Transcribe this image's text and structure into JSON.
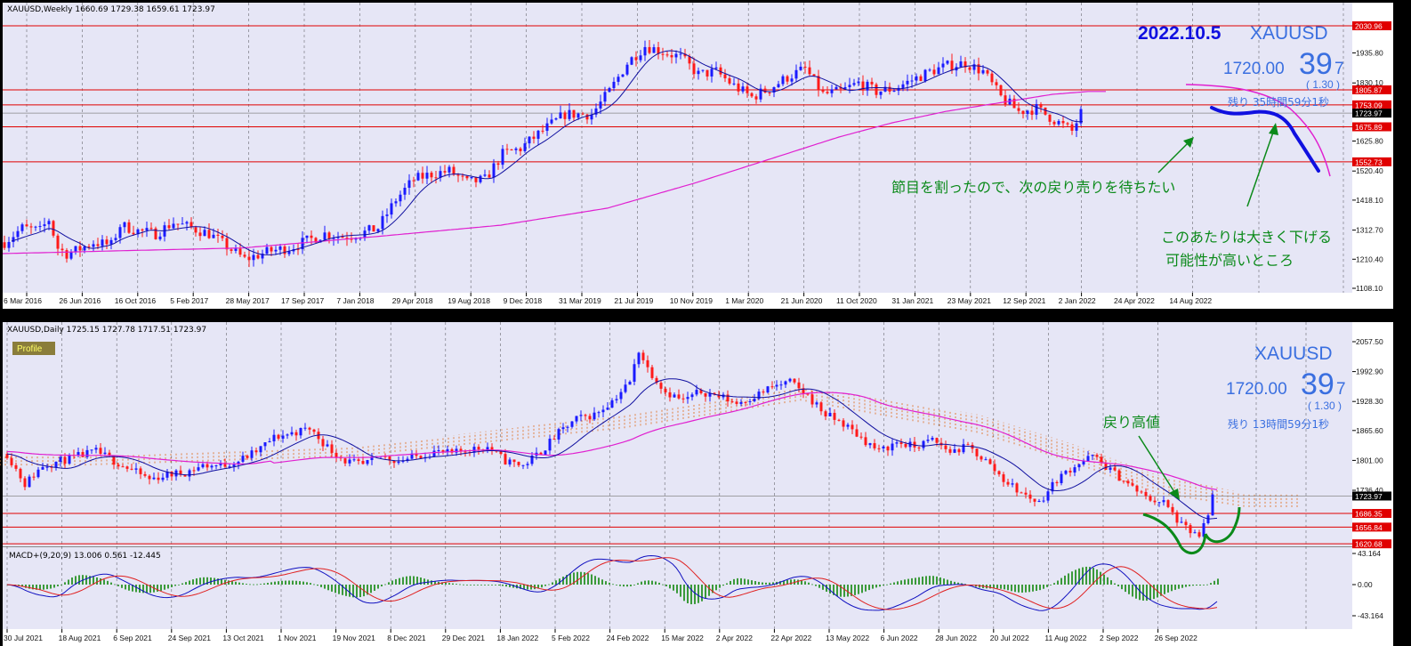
{
  "weekly_panel": {
    "header": "XAUUSD,Weekly  1660.69 1729.38 1659.61 1723.97",
    "date_label": "2022.10.5",
    "symbol": "XAUUSD",
    "price_main": "1720.00",
    "price_big": "39",
    "price_small": "7",
    "change": "( 1.30 )",
    "remaining": "残り 35時間59分1秒",
    "annotation_1": "節目を割ったので、次の戻り売りを待ちたい",
    "annotation_2_line1": "このあたりは大きく下げる",
    "annotation_2_line2": "可能性が高いところ",
    "price_ticks": [
      "1935.80",
      "1830.10",
      "1625.80",
      "1520.40",
      "1418.10",
      "1312.70",
      "1210.40",
      "1108.10"
    ],
    "level_tags": [
      "2030.96",
      "1805.87",
      "1753.09",
      "1723.97",
      "1675.89",
      "1552.73"
    ],
    "date_ticks": [
      "6 Mar 2016",
      "26 Jun 2016",
      "16 Oct 2016",
      "5 Feb 2017",
      "28 May 2017",
      "17 Sep 2017",
      "7 Jan 2018",
      "29 Apr 2018",
      "19 Aug 2018",
      "9 Dec 2018",
      "31 Mar 2019",
      "21 Jul 2019",
      "10 Nov 2019",
      "1 Mar 2020",
      "21 Jun 2020",
      "11 Oct 2020",
      "31 Jan 2021",
      "23 May 2021",
      "12 Sep 2021",
      "2 Jan 2022",
      "24 Apr 2022",
      "14 Aug 2022"
    ]
  },
  "daily_panel": {
    "header": "XAUUSD,Daily  1725.15 1727.78 1717.51 1723.97",
    "profile_label": "Profile",
    "symbol": "XAUUSD",
    "price_main": "1720.00",
    "price_big": "39",
    "price_small": "7",
    "change": "( 1.30 )",
    "remaining": "残り 13時間59分1秒",
    "annotation": "戻り高値",
    "price_ticks": [
      "2057.50",
      "1992.90",
      "1928.30",
      "1865.60",
      "1801.00",
      "1736.40"
    ],
    "level_tags": [
      "1723.97",
      "1686.35",
      "1656.84",
      "1620.68"
    ],
    "date_ticks": [
      "30 Jul 2021",
      "18 Aug 2021",
      "6 Sep 2021",
      "24 Sep 2021",
      "13 Oct 2021",
      "1 Nov 2021",
      "19 Nov 2021",
      "8 Dec 2021",
      "29 Dec 2021",
      "18 Jan 2022",
      "5 Feb 2022",
      "24 Feb 2022",
      "15 Mar 2022",
      "2 Apr 2022",
      "22 Apr 2022",
      "13 May 2022",
      "6 Jun 2022",
      "28 Jun 2022",
      "20 Jul 2022",
      "11 Aug 2022",
      "2 Sep 2022",
      "26 Sep 2022"
    ]
  },
  "macd_panel": {
    "header": "MACD+(9,20,9) 13.006 0.561 -12.445",
    "ticks": [
      "43.164",
      "0.00",
      "-43.164"
    ]
  },
  "colors": {
    "background": "#e6e6f6",
    "up": "#1a1aff",
    "down": "#ff1a1a",
    "level_line": "#e00000",
    "ma_long": "#e020d0",
    "forecast": "#1010e0",
    "annotation": "#0b8a1a",
    "cloud": "#e08040"
  },
  "chart_data": [
    {
      "type": "candlestick",
      "title": "XAUUSD,Weekly",
      "ohlc_last": {
        "open": 1660.69,
        "high": 1729.38,
        "low": 1659.61,
        "close": 1723.97
      },
      "horizontal_levels": [
        2030.96,
        1805.87,
        1753.09,
        1675.89,
        1552.73
      ],
      "y_ticks": [
        1935.8,
        1830.1,
        1625.8,
        1520.4,
        1418.1,
        1312.7,
        1210.4,
        1108.1
      ],
      "close_path": [
        [
          0,
          1270
        ],
        [
          20,
          1320
        ],
        [
          40,
          1310
        ],
        [
          50,
          1350
        ],
        [
          60,
          1250
        ],
        [
          70,
          1230
        ],
        [
          80,
          1240
        ],
        [
          100,
          1270
        ],
        [
          120,
          1260
        ],
        [
          130,
          1330
        ],
        [
          140,
          1320
        ],
        [
          150,
          1310
        ],
        [
          170,
          1300
        ],
        [
          190,
          1340
        ],
        [
          200,
          1330
        ],
        [
          230,
          1300
        ],
        [
          270,
          1210
        ],
        [
          300,
          1240
        ],
        [
          320,
          1250
        ],
        [
          360,
          1300
        ],
        [
          380,
          1290
        ],
        [
          400,
          1300
        ],
        [
          420,
          1320
        ],
        [
          440,
          1420
        ],
        [
          460,
          1490
        ],
        [
          480,
          1510
        ],
        [
          500,
          1520
        ],
        [
          520,
          1480
        ],
        [
          540,
          1490
        ],
        [
          560,
          1580
        ],
        [
          580,
          1600
        ],
        [
          600,
          1650
        ],
        [
          630,
          1720
        ],
        [
          660,
          1720
        ],
        [
          680,
          1800
        ],
        [
          700,
          1900
        ],
        [
          720,
          1960
        ],
        [
          740,
          1940
        ],
        [
          760,
          1920
        ],
        [
          780,
          1860
        ],
        [
          800,
          1870
        ],
        [
          820,
          1820
        ],
        [
          840,
          1780
        ],
        [
          860,
          1810
        ],
        [
          880,
          1850
        ],
        [
          900,
          1880
        ],
        [
          920,
          1790
        ],
        [
          940,
          1800
        ],
        [
          960,
          1830
        ],
        [
          980,
          1800
        ],
        [
          1000,
          1810
        ],
        [
          1020,
          1840
        ],
        [
          1040,
          1870
        ],
        [
          1060,
          1890
        ],
        [
          1080,
          1900
        ],
        [
          1100,
          1870
        ],
        [
          1120,
          1780
        ],
        [
          1140,
          1730
        ],
        [
          1160,
          1740
        ],
        [
          1180,
          1700
        ],
        [
          1200,
          1660
        ],
        [
          1210,
          1724
        ]
      ],
      "ma_long_path": [
        [
          0,
          1230
        ],
        [
          130,
          1240
        ],
        [
          270,
          1250
        ],
        [
          420,
          1290
        ],
        [
          560,
          1330
        ],
        [
          680,
          1390
        ],
        [
          780,
          1480
        ],
        [
          860,
          1560
        ],
        [
          940,
          1640
        ],
        [
          1000,
          1690
        ],
        [
          1060,
          1730
        ],
        [
          1120,
          1760
        ],
        [
          1180,
          1790
        ],
        [
          1220,
          1800
        ]
      ],
      "forecast_path": [
        [
          1210,
          1760
        ],
        [
          1240,
          1740
        ],
        [
          1270,
          1745
        ],
        [
          1300,
          1730
        ],
        [
          1320,
          1680
        ],
        [
          1340,
          1610
        ],
        [
          1360,
          1545
        ]
      ]
    },
    {
      "type": "candlestick",
      "title": "XAUUSD,Daily",
      "ohlc_last": {
        "open": 1725.15,
        "high": 1727.78,
        "low": 1717.51,
        "close": 1723.97
      },
      "horizontal_levels": [
        1686.35,
        1656.84,
        1620.68
      ],
      "y_ticks": [
        2057.5,
        1992.9,
        1928.3,
        1865.6,
        1801.0,
        1736.4
      ],
      "close_path": [
        [
          0,
          1815
        ],
        [
          20,
          1750
        ],
        [
          40,
          1790
        ],
        [
          60,
          1800
        ],
        [
          80,
          1810
        ],
        [
          100,
          1820
        ],
        [
          120,
          1800
        ],
        [
          140,
          1780
        ],
        [
          160,
          1760
        ],
        [
          180,
          1770
        ],
        [
          200,
          1775
        ],
        [
          220,
          1790
        ],
        [
          240,
          1790
        ],
        [
          260,
          1800
        ],
        [
          280,
          1820
        ],
        [
          300,
          1850
        ],
        [
          320,
          1860
        ],
        [
          340,
          1870
        ],
        [
          360,
          1830
        ],
        [
          380,
          1800
        ],
        [
          400,
          1790
        ],
        [
          420,
          1810
        ],
        [
          440,
          1800
        ],
        [
          460,
          1810
        ],
        [
          480,
          1820
        ],
        [
          500,
          1815
        ],
        [
          520,
          1825
        ],
        [
          540,
          1830
        ],
        [
          560,
          1800
        ],
        [
          580,
          1790
        ],
        [
          600,
          1820
        ],
        [
          620,
          1860
        ],
        [
          640,
          1890
        ],
        [
          660,
          1900
        ],
        [
          680,
          1930
        ],
        [
          700,
          1970
        ],
        [
          710,
          2040
        ],
        [
          720,
          2000
        ],
        [
          740,
          1950
        ],
        [
          760,
          1930
        ],
        [
          780,
          1950
        ],
        [
          800,
          1940
        ],
        [
          820,
          1925
        ],
        [
          840,
          1940
        ],
        [
          860,
          1960
        ],
        [
          880,
          1970
        ],
        [
          900,
          1940
        ],
        [
          920,
          1900
        ],
        [
          940,
          1880
        ],
        [
          960,
          1850
        ],
        [
          980,
          1820
        ],
        [
          1000,
          1840
        ],
        [
          1020,
          1830
        ],
        [
          1040,
          1845
        ],
        [
          1060,
          1820
        ],
        [
          1080,
          1830
        ],
        [
          1100,
          1800
        ],
        [
          1120,
          1760
        ],
        [
          1140,
          1730
        ],
        [
          1160,
          1710
        ],
        [
          1180,
          1760
        ],
        [
          1200,
          1790
        ],
        [
          1220,
          1810
        ],
        [
          1240,
          1780
        ],
        [
          1260,
          1750
        ],
        [
          1280,
          1720
        ],
        [
          1300,
          1710
        ],
        [
          1320,
          1660
        ],
        [
          1340,
          1635
        ],
        [
          1350,
          1680
        ],
        [
          1355,
          1724
        ]
      ],
      "cloud_band": [
        [
          100,
          1790,
          1810
        ],
        [
          400,
          1810,
          1830
        ],
        [
          700,
          1870,
          1900
        ],
        [
          900,
          1930,
          1960
        ],
        [
          1100,
          1860,
          1900
        ],
        [
          1200,
          1800,
          1840
        ],
        [
          1300,
          1730,
          1770
        ],
        [
          1400,
          1700,
          1730
        ]
      ]
    },
    {
      "type": "line",
      "title": "MACD+(9,20,9)",
      "values_last": {
        "macd": 13.006,
        "signal": 0.561,
        "histogram": -12.445
      },
      "y_ticks": [
        43.164,
        0.0,
        -43.164
      ]
    }
  ]
}
